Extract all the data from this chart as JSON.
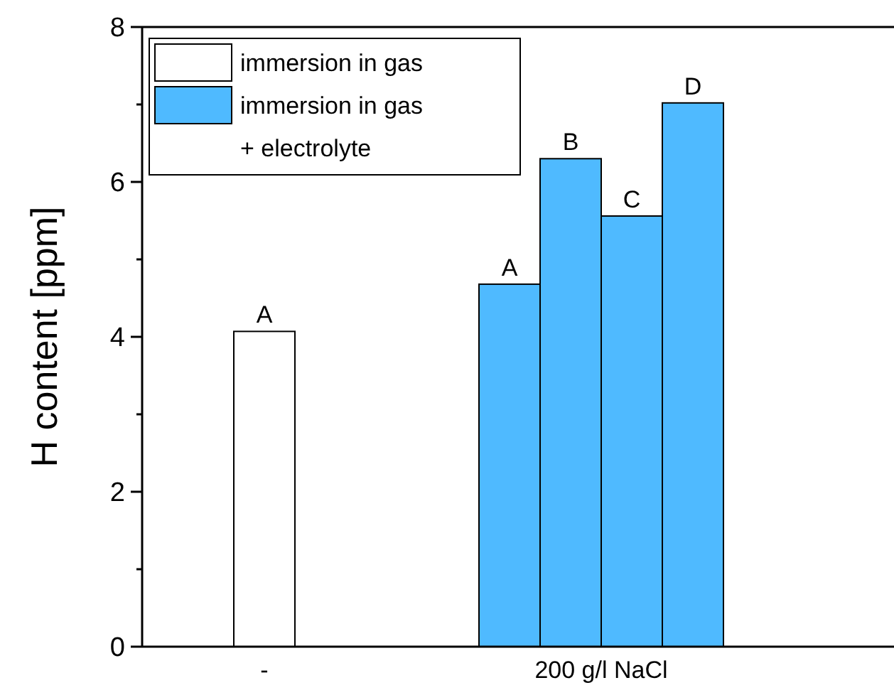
{
  "chart_data": {
    "type": "bar",
    "ylabel": "H content [ppm]",
    "categories": [
      "-",
      "200 g/l NaCl"
    ],
    "series": [
      {
        "name": "immersion in gas",
        "color": "#ffffff",
        "values": [
          4.07,
          null
        ],
        "value_labels": [
          "A",
          null
        ]
      },
      {
        "name": "immersion in gas\n+ electrolyte",
        "color": "#4fbaff",
        "values": [
          null,
          4.68
        ],
        "value_labels": [
          null,
          "A"
        ]
      },
      {
        "color": "#4fbaff",
        "values": [
          null,
          6.3
        ],
        "value_labels": [
          null,
          "B"
        ]
      },
      {
        "color": "#4fbaff",
        "values": [
          null,
          5.56
        ],
        "value_labels": [
          null,
          "C"
        ]
      },
      {
        "color": "#4fbaff",
        "values": [
          null,
          7.02
        ],
        "value_labels": [
          null,
          "D"
        ]
      }
    ],
    "ylim": [
      0,
      8
    ],
    "yticks": [
      0,
      {
        "value": 1,
        "label": null
      },
      2,
      {
        "value": 3,
        "label": null
      },
      4,
      {
        "value": 5,
        "label": null
      },
      6,
      {
        "value": 7,
        "label": null
      },
      8
    ],
    "legend": "top left",
    "grid": false
  }
}
